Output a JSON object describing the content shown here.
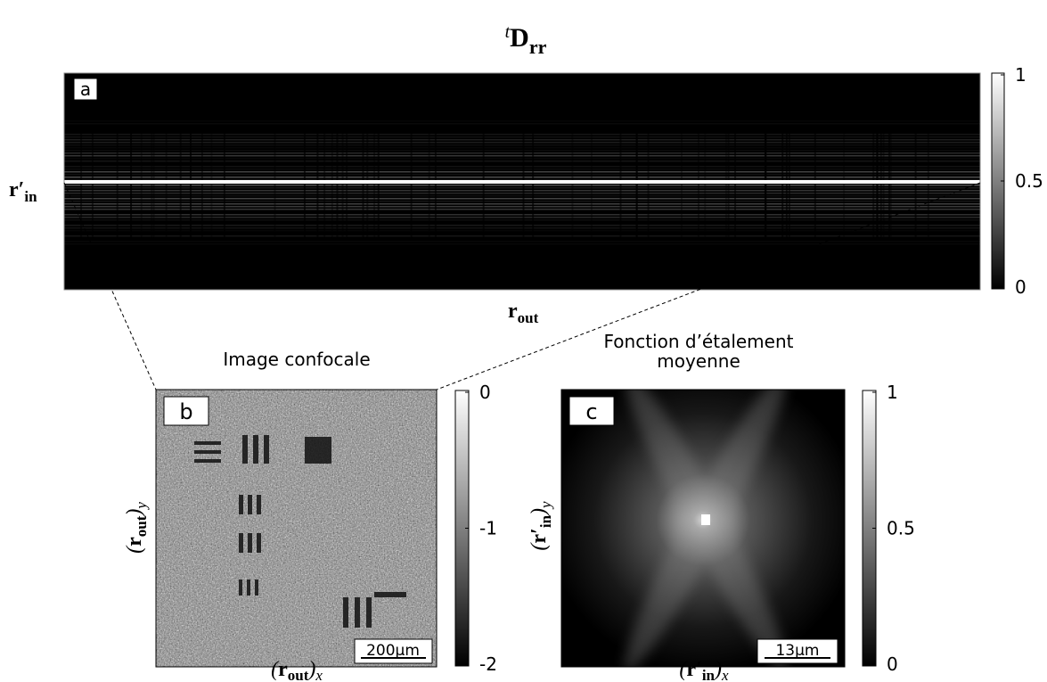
{
  "title": {
    "sup": "t",
    "main": "D",
    "sub": "rr"
  },
  "panels": [
    {
      "label": "a",
      "x_label": {
        "main": "r",
        "sub": "out"
      },
      "y_label": {
        "main": "r′",
        "sub": "in"
      },
      "colorbar": {
        "lim": [
          0,
          1
        ],
        "ticks": [
          0,
          0.5,
          1
        ]
      }
    },
    {
      "label": "b",
      "title_lines": [
        "Image confocale"
      ],
      "x_label": {
        "open": "(",
        "main": "r",
        "sub": "out",
        "close": ")",
        "sub2": "x"
      },
      "y_label": {
        "open": "(",
        "main": "r",
        "sub": "out",
        "close": ")",
        "sub2": "y"
      },
      "scale_bar": "200µm",
      "colorbar": {
        "lim": [
          -2,
          0
        ],
        "ticks": [
          0,
          -1,
          -2
        ]
      }
    },
    {
      "label": "c",
      "title_lines": [
        "Fonction d’étalement",
        "moyenne"
      ],
      "x_label": {
        "open": "(",
        "main": "r′",
        "sub": "in",
        "close": ")",
        "sub2": "x"
      },
      "y_label": {
        "open": "(",
        "main": "r′",
        "sub": "in",
        "close": ")",
        "sub2": "y"
      },
      "scale_bar": "13µm",
      "colorbar": {
        "lim": [
          0,
          1
        ],
        "ticks": [
          0,
          0.5,
          1
        ]
      }
    }
  ]
}
